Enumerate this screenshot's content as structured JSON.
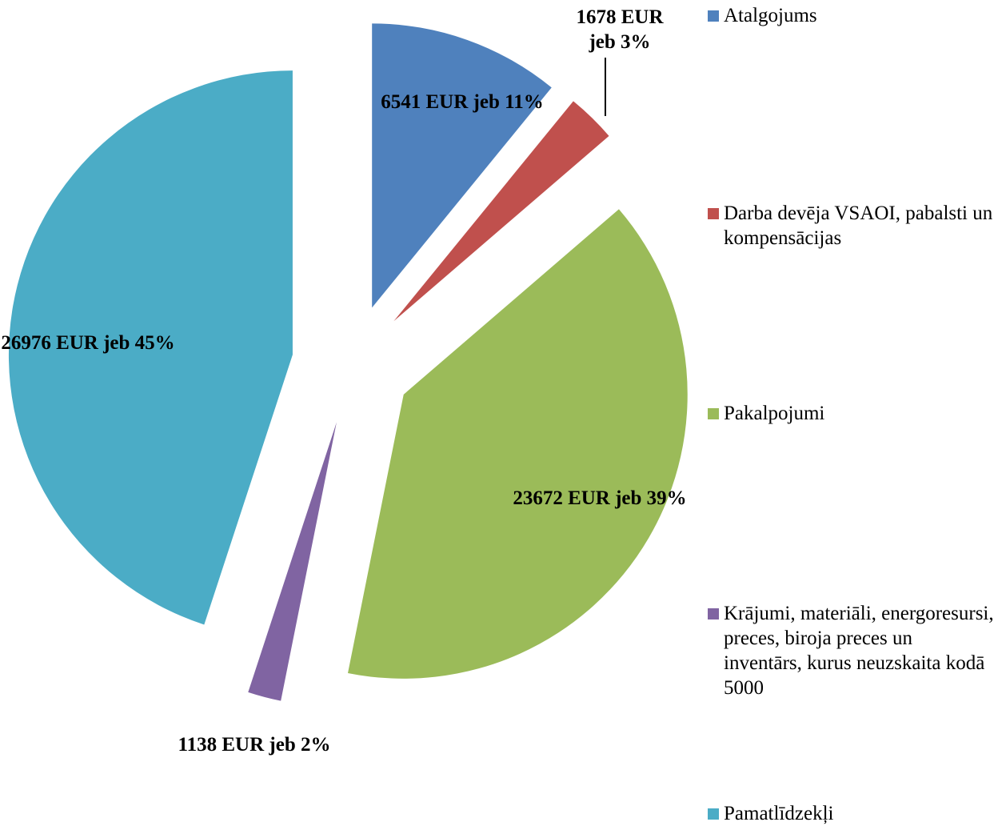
{
  "chart_data": {
    "type": "pie",
    "categories": [
      "Atalgojums",
      "Darba devēja VSAOI, pabalsti un kompensācijas",
      "Pakalpojumi",
      "Krājumi, materiāli, energoresursi, preces, biroja preces un inventārs, kurus neuzskaita kodā 5000",
      "Pamatlīdzekļi"
    ],
    "values": [
      6541,
      1678,
      23672,
      1138,
      26976
    ],
    "value_labels": [
      "6541 EUR jeb 11%",
      "1678 EUR jeb 3%",
      "23672 EUR jeb 39%",
      "1138 EUR jeb 2%",
      "26976 EUR jeb 45%"
    ],
    "colors": [
      "#4f81bd",
      "#c0504d",
      "#9bbb59",
      "#8064a2",
      "#4bacc6"
    ],
    "legend": "right"
  }
}
